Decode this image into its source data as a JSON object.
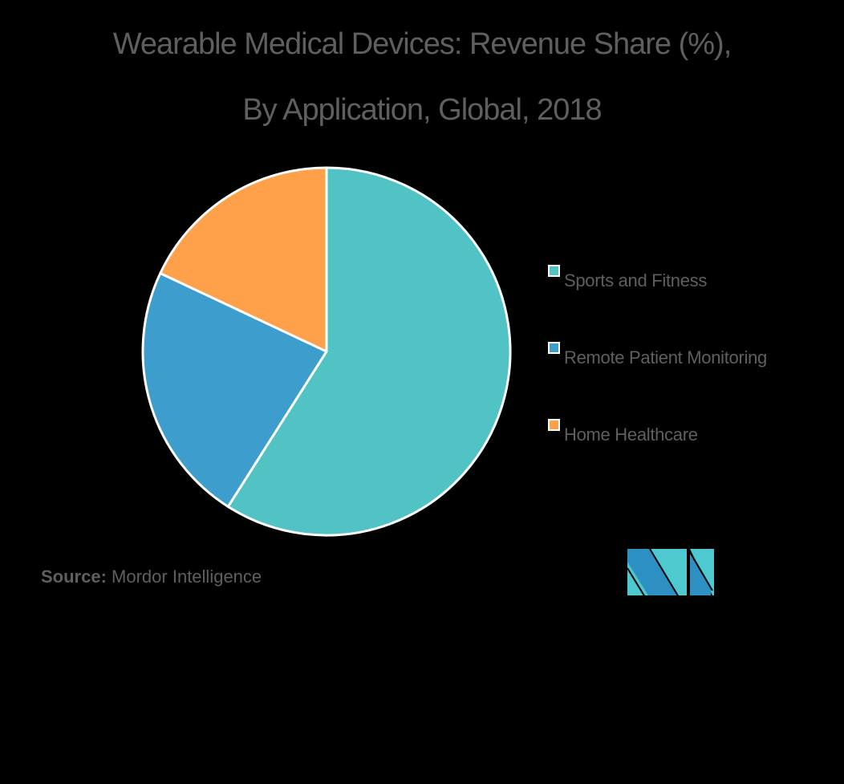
{
  "title": {
    "line1": "Wearable Medical Devices: Revenue Share (%),",
    "line2": "By Application, Global, 2018"
  },
  "legend": {
    "items": [
      {
        "label": "Sports and Fitness",
        "color": "#52C3C5"
      },
      {
        "label": "Remote Patient Monitoring",
        "color": "#3D9DCD"
      },
      {
        "label": "Home Healthcare",
        "color": "#FFA04A"
      }
    ]
  },
  "source": {
    "prefix": "Source:",
    "text": "Mordor Intelligence"
  },
  "logo": {
    "name": "mordor-intelligence-logo",
    "colors": {
      "dark": "#2E8FC2",
      "light": "#4DC9CF"
    }
  },
  "chart_data": {
    "type": "pie",
    "title": "Wearable Medical Devices: Revenue Share (%), By Application, Global, 2018",
    "categories": [
      "Sports and Fitness",
      "Remote Patient Monitoring",
      "Home Healthcare"
    ],
    "values": [
      59,
      23,
      18
    ],
    "colors": [
      "#52C3C5",
      "#3D9DCD",
      "#FFA04A"
    ],
    "start_angle_deg": 0,
    "direction": "clockwise",
    "legend_position": "right",
    "data_labels": false,
    "source": "Mordor Intelligence"
  }
}
